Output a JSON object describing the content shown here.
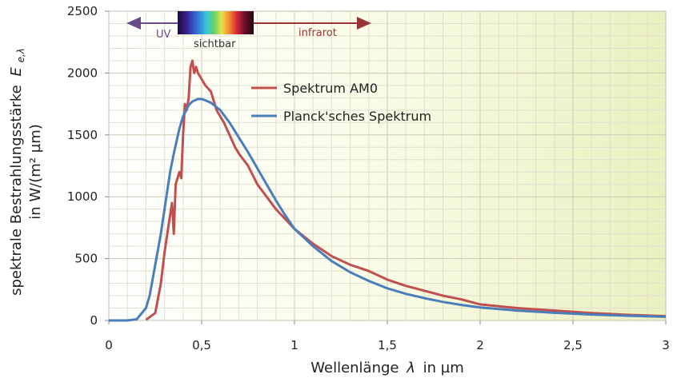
{
  "chart_data": {
    "type": "line",
    "xlabel": "Wellenlänge",
    "xlabel_symbol": "λ",
    "xlabel_unit": "in µm",
    "ylabel_line1": "spektrale Bestrahlungsstärke",
    "ylabel_symbol": "E",
    "ylabel_subscript": "e,λ",
    "ylabel_line2": "in W/(m² µm)",
    "xlim": [
      0,
      3
    ],
    "ylim": [
      0,
      2500
    ],
    "x_ticks": [
      0,
      0.5,
      1,
      1.5,
      2,
      2.5,
      3
    ],
    "x_tick_labels": [
      "0",
      "0,5",
      "1",
      "1,5",
      "2",
      "2,5",
      "3"
    ],
    "y_ticks": [
      0,
      500,
      1000,
      1500,
      2000,
      2500
    ],
    "y_tick_labels": [
      "0",
      "500",
      "1000",
      "1500",
      "2000",
      "2500"
    ],
    "grid": true,
    "legend_position": "upper-middle",
    "series": [
      {
        "name": "Spektrum AM0",
        "color": "#c0504d",
        "x": [
          0.2,
          0.25,
          0.28,
          0.3,
          0.32,
          0.34,
          0.35,
          0.36,
          0.37,
          0.38,
          0.39,
          0.4,
          0.41,
          0.42,
          0.43,
          0.44,
          0.45,
          0.46,
          0.47,
          0.48,
          0.5,
          0.52,
          0.55,
          0.58,
          0.6,
          0.62,
          0.65,
          0.68,
          0.7,
          0.75,
          0.8,
          0.85,
          0.9,
          0.95,
          1.0,
          1.1,
          1.2,
          1.3,
          1.4,
          1.5,
          1.6,
          1.7,
          1.8,
          1.9,
          2.0,
          2.2,
          2.4,
          2.6,
          2.8,
          3.0
        ],
        "y": [
          5,
          60,
          300,
          550,
          750,
          950,
          700,
          1100,
          1150,
          1200,
          1150,
          1500,
          1750,
          1700,
          1800,
          2050,
          2100,
          2000,
          2050,
          2000,
          1950,
          1900,
          1850,
          1700,
          1650,
          1600,
          1500,
          1400,
          1350,
          1250,
          1100,
          1000,
          900,
          820,
          740,
          620,
          520,
          450,
          400,
          330,
          280,
          240,
          200,
          170,
          130,
          100,
          80,
          60,
          45,
          35
        ]
      },
      {
        "name": "Planck'sches Spektrum",
        "color": "#4a7ebb",
        "x": [
          0,
          0.1,
          0.15,
          0.2,
          0.22,
          0.25,
          0.28,
          0.3,
          0.33,
          0.35,
          0.38,
          0.4,
          0.43,
          0.45,
          0.48,
          0.5,
          0.52,
          0.55,
          0.6,
          0.65,
          0.7,
          0.75,
          0.8,
          0.85,
          0.9,
          0.95,
          1.0,
          1.1,
          1.2,
          1.3,
          1.4,
          1.5,
          1.6,
          1.7,
          1.8,
          1.9,
          2.0,
          2.2,
          2.4,
          2.6,
          2.8,
          3.0
        ],
        "y": [
          0,
          0,
          10,
          100,
          200,
          450,
          700,
          900,
          1200,
          1350,
          1550,
          1650,
          1740,
          1770,
          1790,
          1790,
          1780,
          1760,
          1700,
          1600,
          1480,
          1360,
          1230,
          1100,
          970,
          850,
          740,
          600,
          480,
          390,
          320,
          260,
          215,
          180,
          150,
          125,
          105,
          80,
          62,
          48,
          38,
          30
        ]
      }
    ],
    "annotations": {
      "uv": "UV",
      "visible": "sichtbar",
      "infrared": "infrarot"
    },
    "colors": {
      "uv_arrow": "#6b4c8a",
      "ir_arrow": "#9a3333",
      "grid": "#d6d6c2",
      "plot_bg_left": "#ffffff",
      "plot_bg_right": "#eef3c8"
    }
  }
}
